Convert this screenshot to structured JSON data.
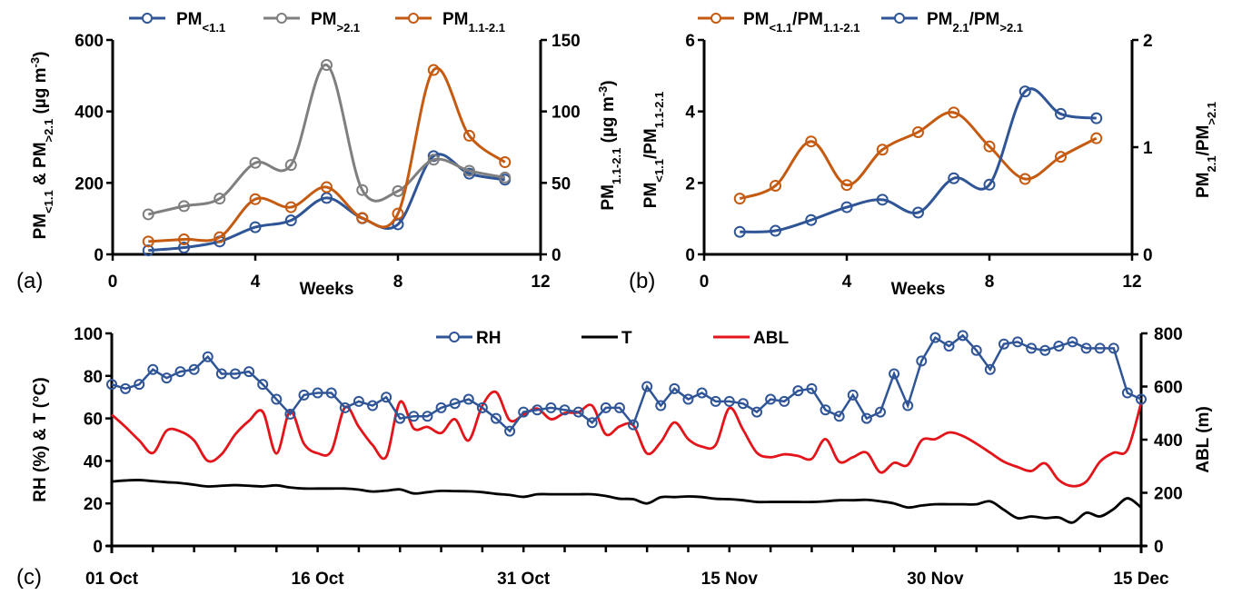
{
  "chart_data": [
    {
      "id": "a",
      "type": "line",
      "panel_label": "(a)",
      "xlabel": "Weeks",
      "x_ticks": [
        "0",
        "4",
        "8",
        "12"
      ],
      "xlim": [
        0,
        12
      ],
      "ylabel_left": {
        "main": "PM",
        "sub1": "<1.1",
        "mid": " & PM",
        "sub2": ">2.1",
        "unit": " (µg m",
        "sup": "-3",
        "end": ")"
      },
      "ylabel_right": {
        "main": "PM",
        "sub1": "1.1-2.1",
        "unit": " (µg m",
        "sup": "-3",
        "end": ")"
      },
      "ylim_left": [
        0,
        600
      ],
      "yticks_left": [
        "0",
        "200",
        "400",
        "600"
      ],
      "ylim_right": [
        0,
        150
      ],
      "yticks_right": [
        "0",
        "50",
        "100",
        "150"
      ],
      "x": [
        1,
        2,
        3,
        4,
        5,
        6,
        7,
        8,
        9,
        10,
        11
      ],
      "series": [
        {
          "name": "PM",
          "sub": "<1.1",
          "axis": "left",
          "color": "#2F5597",
          "values": [
            11,
            19,
            36,
            76,
            95,
            158,
            101,
            84,
            275,
            226,
            209
          ]
        },
        {
          "name": "PM",
          "sub": ">2.1",
          "axis": "left",
          "color": "#7F7F7F",
          "values": [
            112,
            135,
            156,
            256,
            250,
            530,
            180,
            177,
            265,
            234,
            215
          ]
        },
        {
          "name": "PM",
          "sub": "1.1-2.1",
          "axis": "right",
          "color": "#C55A11",
          "values": [
            9,
            10.5,
            12,
            38.6,
            33,
            47,
            25.5,
            28.5,
            129,
            83,
            64.5
          ]
        }
      ],
      "legend": "top"
    },
    {
      "id": "b",
      "type": "line",
      "panel_label": "(b)",
      "xlabel": "Weeks",
      "x_ticks": [
        "0",
        "4",
        "8",
        "12"
      ],
      "xlim": [
        0,
        12
      ],
      "ylabel_left": {
        "main": "PM",
        "sub1": "<1.1",
        "mid": "/PM",
        "sub2": "1.1-2.1"
      },
      "ylabel_right": {
        "main": "PM",
        "sub1": "2.1",
        "mid": "/PM",
        "sub2": ">2.1"
      },
      "ylim_left": [
        0,
        6
      ],
      "yticks_left": [
        "0",
        "2",
        "4",
        "6"
      ],
      "ylim_right": [
        0,
        2
      ],
      "yticks_right": [
        "0",
        "1",
        "2"
      ],
      "x": [
        1,
        2,
        3,
        4,
        5,
        6,
        7,
        8,
        9,
        10,
        11
      ],
      "series": [
        {
          "name": "PM",
          "sub": "<1.1",
          "name2": "/PM",
          "sub2": "1.1-2.1",
          "axis": "left",
          "color": "#C55A11",
          "values": [
            1.56,
            1.92,
            3.16,
            1.94,
            2.93,
            3.42,
            3.97,
            3.02,
            2.11,
            2.73,
            3.25
          ]
        },
        {
          "name": "PM",
          "sub": "2.1",
          "name2": "/PM",
          "sub2": ">2.1",
          "axis": "right",
          "color": "#2F5597",
          "values": [
            0.21,
            0.22,
            0.32,
            0.44,
            0.51,
            0.39,
            0.71,
            0.65,
            1.52,
            1.31,
            1.27
          ]
        }
      ],
      "legend": "top"
    },
    {
      "id": "c",
      "type": "line",
      "panel_label": "(c)",
      "xlabel": "",
      "x_tick_labels": [
        {
          "day": 0,
          "label": "01 Oct"
        },
        {
          "day": 15,
          "label": "16 Oct"
        },
        {
          "day": 30,
          "label": "31 Oct"
        },
        {
          "day": 45,
          "label": "15 Nov"
        },
        {
          "day": 60,
          "label": "30 Nov"
        },
        {
          "day": 75,
          "label": "15 Dec"
        }
      ],
      "xlim_days": [
        0,
        75
      ],
      "x_minor_tick_every_days": 3,
      "ylabel_left": "RH (%) & T (°C)",
      "ylabel_right": "ABL (m)",
      "ylim_left": [
        0,
        100
      ],
      "yticks_left": [
        "0",
        "20",
        "40",
        "60",
        "80",
        "100"
      ],
      "ylim_right": [
        0,
        800
      ],
      "yticks_right": [
        "0",
        "200",
        "400",
        "600",
        "800"
      ],
      "series": [
        {
          "name": "RH",
          "axis": "left",
          "color": "#2F5597",
          "markers": true,
          "values": [
            76,
            74,
            76,
            83,
            79,
            82,
            83,
            89,
            81,
            81,
            82,
            76,
            69,
            62,
            71,
            72,
            72,
            65,
            68,
            66,
            70,
            60,
            61,
            61,
            65,
            67,
            69,
            65,
            60,
            54,
            63,
            64,
            65,
            64,
            63,
            58,
            65,
            65,
            57,
            75,
            66,
            74,
            69,
            72,
            68,
            68,
            67,
            63,
            69,
            68,
            73,
            74,
            64,
            61,
            71,
            60,
            63,
            81,
            66,
            87,
            98,
            94,
            99,
            92,
            83,
            95,
            96,
            93,
            92,
            94,
            96,
            93,
            93,
            93,
            72,
            69
          ]
        },
        {
          "name": "T",
          "axis": "left",
          "color": "#000000",
          "markers": false,
          "values": [
            30.3,
            30.8,
            31,
            30.5,
            30,
            29.6,
            28.8,
            28,
            28.3,
            28.6,
            28.3,
            28,
            28.5,
            27.5,
            27,
            27,
            27,
            27,
            26.5,
            25.6,
            26,
            26.6,
            24.7,
            25.3,
            25.9,
            25.8,
            25.7,
            25.3,
            24.5,
            24,
            23.1,
            24.3,
            24.3,
            24.3,
            24.3,
            24.3,
            23.5,
            22.2,
            22,
            20,
            22.9,
            23,
            23.3,
            23,
            22.2,
            22,
            21.5,
            20.7,
            20.7,
            20.7,
            20.7,
            20.7,
            21,
            21.5,
            21.5,
            21.7,
            21,
            20,
            18.1,
            19,
            19.6,
            19.6,
            19.6,
            19.6,
            21,
            17,
            13.1,
            13.9,
            13.1,
            13.4,
            11,
            15.6,
            13.9,
            17.4,
            22.4,
            18.1
          ]
        },
        {
          "name": "ABL",
          "axis": "right",
          "color": "#E3141A",
          "markers": false,
          "values": [
            494,
            448,
            397,
            350,
            434,
            431,
            397,
            320,
            345,
            420,
            471,
            505,
            348,
            507,
            385,
            349,
            357,
            522,
            448,
            380,
            336,
            542,
            442,
            448,
            425,
            477,
            397,
            528,
            579,
            473,
            494,
            517,
            477,
            500,
            503,
            528,
            420,
            450,
            454,
            348,
            391,
            465,
            402,
            374,
            380,
            519,
            437,
            351,
            334,
            345,
            339,
            328,
            402,
            317,
            334,
            351,
            277,
            313,
            305,
            397,
            402,
            427,
            414,
            385,
            351,
            317,
            297,
            282,
            311,
            248,
            225,
            242,
            317,
            351,
            362,
            539
          ]
        }
      ],
      "legend": "top-center"
    }
  ]
}
